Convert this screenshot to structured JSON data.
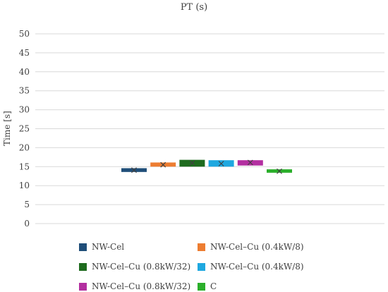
{
  "chart_data": {
    "type": "box",
    "title": "PT (s)",
    "xlabel": "",
    "ylabel": "Time [s]",
    "ylim": [
      0,
      50
    ],
    "yticks": [
      0,
      5,
      10,
      15,
      20,
      25,
      30,
      35,
      40,
      45,
      50
    ],
    "grid": true,
    "legend_position": "bottom",
    "series": [
      {
        "name": "NW-Cel",
        "color": "#1F4E79",
        "q1": 13.6,
        "q3": 14.6,
        "mean": 14.1
      },
      {
        "name": "NW-Cel–Cu (0.4kW/8)",
        "color": "#ED7D31",
        "q1": 15.0,
        "q3": 16.1,
        "mean": 15.5
      },
      {
        "name": "NW-Cel–Cu (0.8kW/32)",
        "color": "#1E6B1E",
        "q1": 15.0,
        "q3": 16.8,
        "mean": 16.0
      },
      {
        "name": "NW-Cel–Cu (0.4kW/8)",
        "color": "#1FA8E0",
        "q1": 15.0,
        "q3": 16.7,
        "mean": 15.8
      },
      {
        "name": "NW-Cel–Cu (0.8kW/32)",
        "color": "#B32FA0",
        "q1": 15.3,
        "q3": 16.7,
        "mean": 16.1
      },
      {
        "name": "C",
        "color": "#2BAF2B",
        "q1": 13.4,
        "q3": 14.3,
        "mean": 13.8
      }
    ]
  }
}
